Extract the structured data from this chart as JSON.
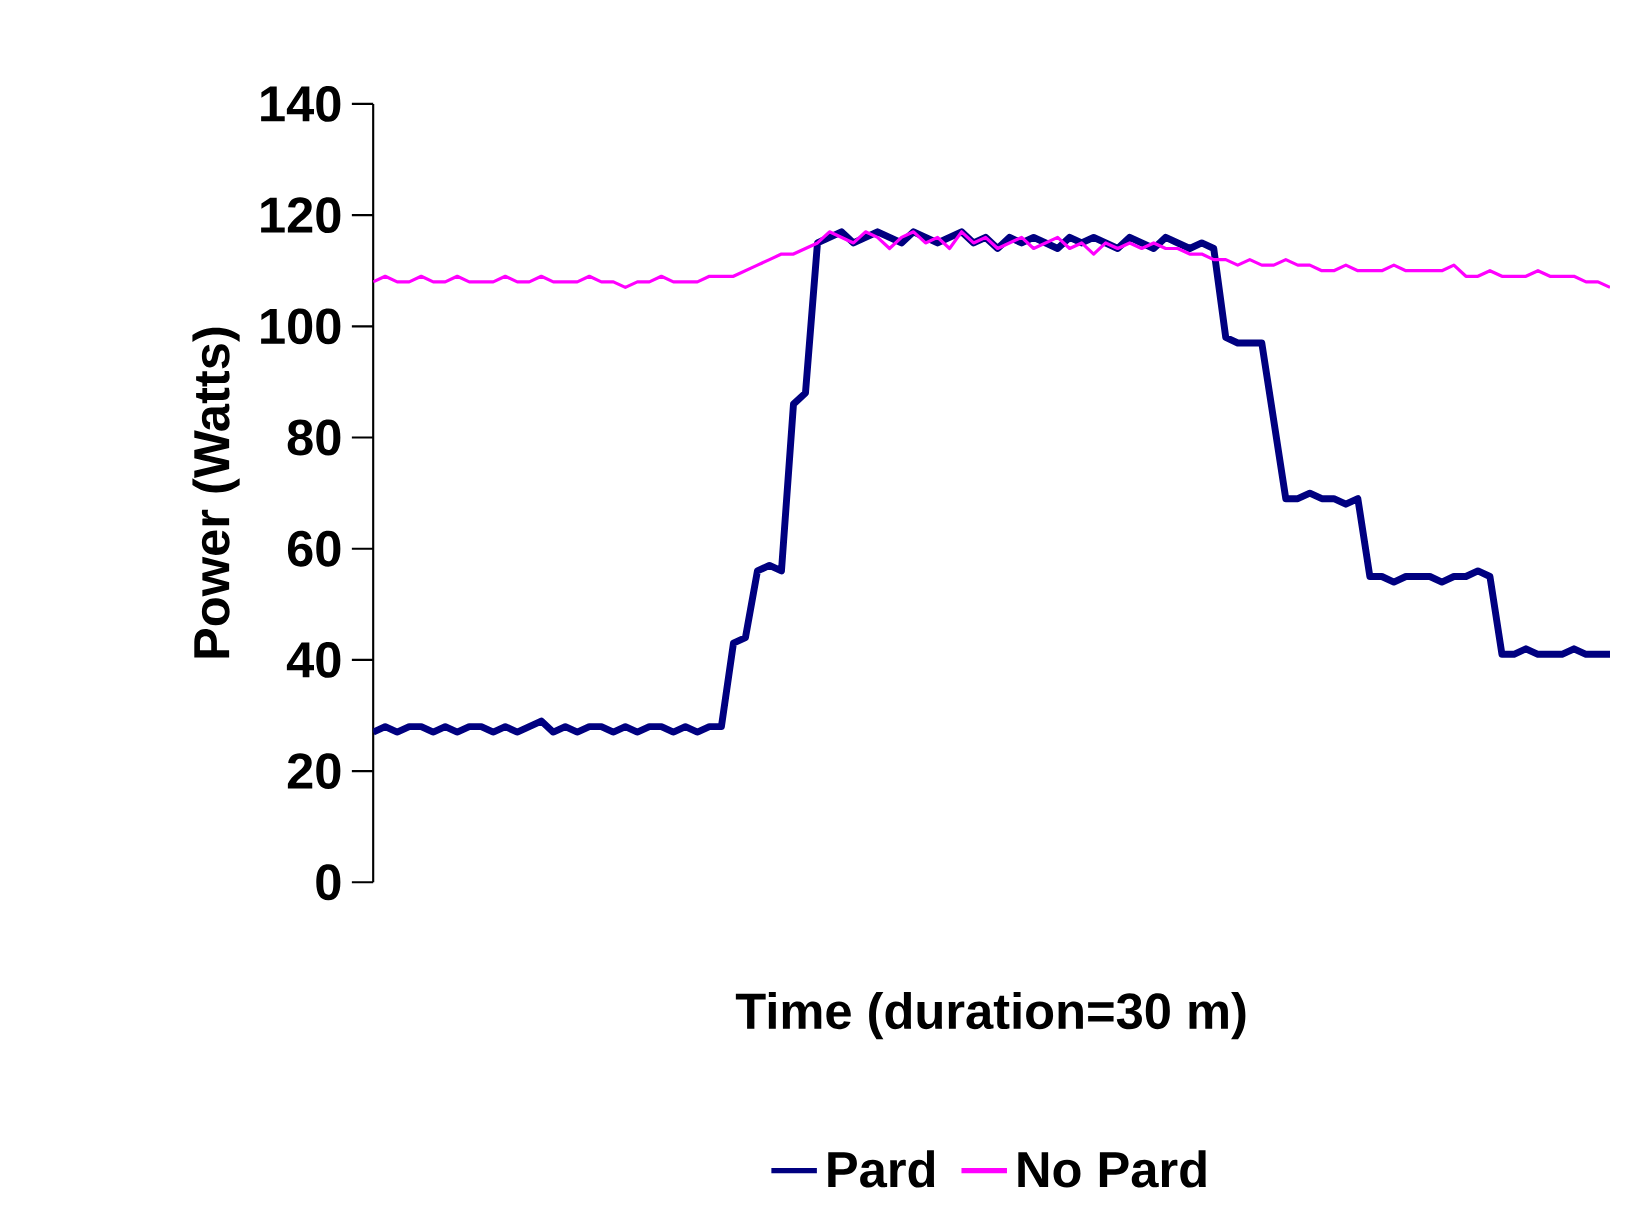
{
  "chart_data": {
    "type": "line",
    "xlabel": "Time (duration=30 m)",
    "ylabel": "Power (Watts)",
    "categories": [
      null,
      null,
      null,
      null,
      null,
      null,
      null,
      null,
      null,
      null,
      null,
      null,
      null,
      null,
      null,
      null,
      null,
      null,
      null,
      null,
      null,
      null,
      null,
      null,
      null,
      null,
      null,
      null,
      null,
      null,
      null,
      null,
      null,
      null,
      null,
      null,
      null,
      null,
      null,
      null,
      null,
      null,
      null,
      null,
      null,
      null,
      null,
      null,
      null,
      null,
      null,
      null,
      null,
      null,
      null,
      null,
      null,
      null,
      null,
      null,
      null,
      null,
      null,
      null,
      null,
      null,
      null,
      null,
      null,
      null,
      null,
      null,
      null,
      null,
      null,
      null,
      null,
      null,
      null,
      null,
      null,
      null,
      null,
      null,
      null,
      null,
      null,
      null,
      null,
      null,
      null,
      null,
      null,
      null,
      null,
      null,
      null,
      null,
      null,
      null,
      null,
      null,
      null,
      null
    ],
    "series": [
      {
        "name": "Pard",
        "color": "#000080",
        "values": [
          27,
          28,
          27,
          28,
          28,
          27,
          28,
          27,
          28,
          28,
          27,
          28,
          27,
          28,
          29,
          27,
          28,
          27,
          28,
          28,
          27,
          28,
          27,
          28,
          28,
          27,
          28,
          27,
          28,
          28,
          43,
          44,
          56,
          57,
          56,
          86,
          88,
          115,
          116,
          117,
          115,
          116,
          117,
          116,
          115,
          117,
          116,
          115,
          116,
          117,
          115,
          116,
          114,
          116,
          115,
          116,
          115,
          114,
          116,
          115,
          116,
          115,
          114,
          116,
          115,
          114,
          116,
          115,
          114,
          115,
          114,
          98,
          97,
          97,
          97,
          83,
          69,
          69,
          70,
          69,
          69,
          68,
          69,
          55,
          55,
          54,
          55,
          55,
          55,
          54,
          55,
          55,
          56,
          55,
          41,
          41,
          42,
          41,
          41,
          41,
          42,
          41,
          41,
          41
        ]
      },
      {
        "name": "No Pard",
        "color": "#ff00ff",
        "values": [
          108,
          109,
          108,
          108,
          109,
          108,
          108,
          109,
          108,
          108,
          108,
          109,
          108,
          108,
          109,
          108,
          108,
          108,
          109,
          108,
          108,
          107,
          108,
          108,
          109,
          108,
          108,
          108,
          109,
          109,
          109,
          110,
          111,
          112,
          113,
          113,
          114,
          115,
          117,
          116,
          115,
          117,
          116,
          114,
          116,
          117,
          115,
          116,
          114,
          117,
          115,
          116,
          114,
          115,
          116,
          114,
          115,
          116,
          114,
          115,
          113,
          115,
          114,
          115,
          114,
          115,
          114,
          114,
          113,
          113,
          112,
          112,
          111,
          112,
          111,
          111,
          112,
          111,
          111,
          110,
          110,
          111,
          110,
          110,
          110,
          111,
          110,
          110,
          110,
          110,
          111,
          109,
          109,
          110,
          109,
          109,
          109,
          110,
          109,
          109,
          109,
          108,
          108,
          107
        ]
      }
    ],
    "ylim": [
      0,
      140
    ],
    "yticks": [
      0,
      20,
      40,
      60,
      80,
      100,
      120,
      140
    ],
    "grid": false,
    "legend": "bottom",
    "marker": "none",
    "line_style": "solid"
  }
}
